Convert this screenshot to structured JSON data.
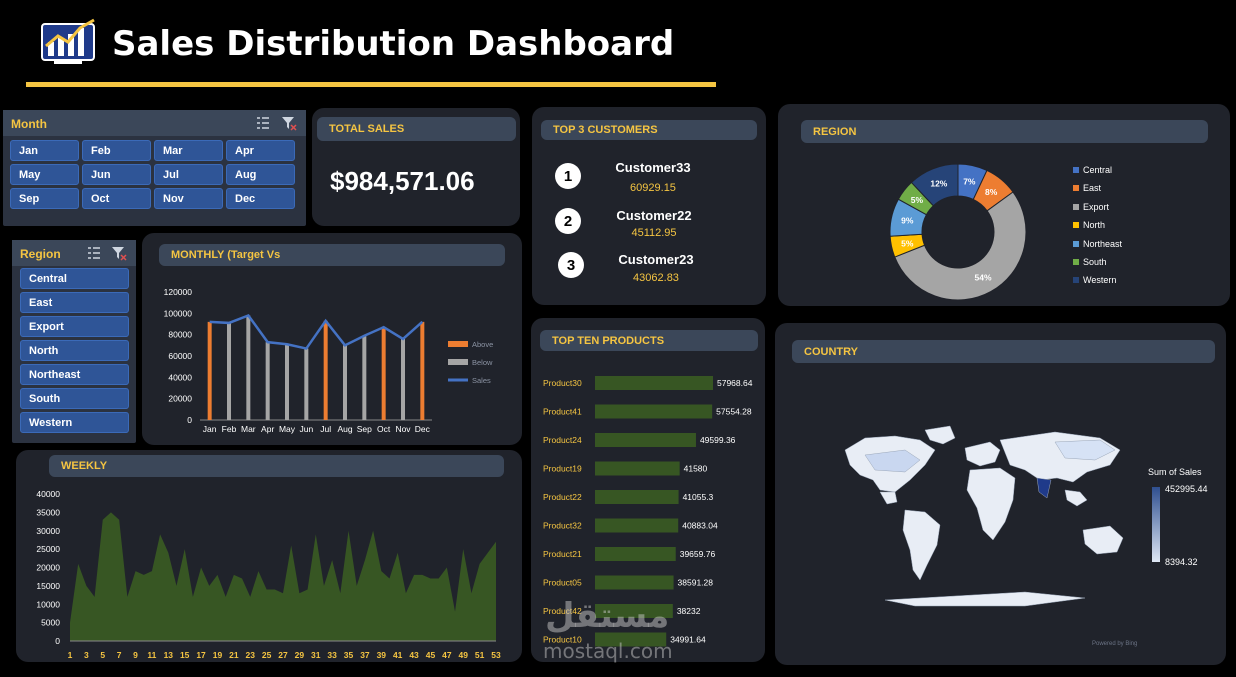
{
  "header": {
    "title": "Sales Distribution Dashboard"
  },
  "month_slicer": {
    "label": "Month",
    "items": [
      "Jan",
      "Feb",
      "Mar",
      "Apr",
      "May",
      "Jun",
      "Jul",
      "Aug",
      "Sep",
      "Oct",
      "Nov",
      "Dec"
    ]
  },
  "total_sales": {
    "label": "TOTAL SALES",
    "value": "$984,571.06"
  },
  "top_customers": {
    "label": "TOP 3 CUSTOMERS",
    "items": [
      {
        "rank": "1",
        "name": "Customer33",
        "value": "60929.15"
      },
      {
        "rank": "2",
        "name": "Customer22",
        "value": "45112.95"
      },
      {
        "rank": "3",
        "name": "Customer23",
        "value": "43062.83"
      }
    ]
  },
  "region_chart": {
    "label": "REGION",
    "chart_data": {
      "type": "pie",
      "categories": [
        "Central",
        "East",
        "Export",
        "North",
        "Northeast",
        "South",
        "Western"
      ],
      "values": [
        7,
        8,
        54,
        5,
        9,
        5,
        12
      ],
      "labels": [
        "7%",
        "8%",
        "54%",
        "5%",
        "9%",
        "5%",
        "12%"
      ],
      "colors": [
        "#4472c4",
        "#ed7d31",
        "#a5a5a5",
        "#ffc000",
        "#5b9bd5",
        "#70ad47",
        "#264478"
      ]
    }
  },
  "region_slicer": {
    "label": "Region",
    "items": [
      "Central",
      "East",
      "Export",
      "North",
      "Northeast",
      "South",
      "Western"
    ]
  },
  "monthly_chart": {
    "label": "MONTHLY (Target Vs",
    "chart_data": {
      "type": "bar",
      "categories": [
        "Jan",
        "Feb",
        "Mar",
        "Apr",
        "May",
        "Jun",
        "Jul",
        "Aug",
        "Sep",
        "Oct",
        "Nov",
        "Dec"
      ],
      "series": [
        {
          "name": "Above",
          "color": "#ed7d31"
        },
        {
          "name": "Below",
          "color": "#a5a5a5"
        },
        {
          "name": "Sales",
          "color": "#4472c4"
        }
      ],
      "values": [
        92000,
        91000,
        98000,
        73000,
        71000,
        67000,
        93000,
        70000,
        79000,
        87000,
        76000,
        92000
      ],
      "above": [
        true,
        false,
        false,
        false,
        false,
        false,
        true,
        false,
        false,
        true,
        false,
        true
      ],
      "y_ticks": [
        "120000",
        "100000",
        "80000",
        "60000",
        "40000",
        "20000",
        "0"
      ],
      "ylim": [
        0,
        120000
      ]
    }
  },
  "top_products": {
    "label": "TOP TEN PRODUCTS",
    "chart_data": {
      "type": "bar",
      "categories": [
        "Product30",
        "Product41",
        "Product24",
        "Product19",
        "Product22",
        "Product32",
        "Product21",
        "Product05",
        "Product42",
        "Product10"
      ],
      "values": [
        57968.64,
        57554.28,
        49599.36,
        41580,
        41055.3,
        40883.04,
        39659.76,
        38591.28,
        38232,
        34991.64
      ],
      "value_labels": [
        "57968.64",
        "57554.28",
        "49599.36",
        "41580",
        "41055.3",
        "40883.04",
        "39659.76",
        "38591.28",
        "38232",
        "34991.64"
      ],
      "color": "#375623"
    }
  },
  "weekly_chart": {
    "label": "WEEKLY",
    "chart_data": {
      "type": "area",
      "x": [
        1,
        2,
        3,
        4,
        5,
        6,
        7,
        8,
        9,
        10,
        11,
        12,
        13,
        14,
        15,
        16,
        17,
        18,
        19,
        20,
        21,
        22,
        23,
        24,
        25,
        26,
        27,
        28,
        29,
        30,
        31,
        32,
        33,
        34,
        35,
        36,
        37,
        38,
        39,
        40,
        41,
        42,
        43,
        44,
        45,
        46,
        47,
        48,
        49,
        50,
        51,
        52,
        53
      ],
      "values": [
        5000,
        21000,
        15000,
        12000,
        33000,
        35000,
        33000,
        12000,
        19000,
        18000,
        19000,
        29000,
        24000,
        15000,
        25000,
        12000,
        20000,
        15000,
        18000,
        12000,
        18000,
        17000,
        12000,
        19000,
        14000,
        14000,
        13000,
        26000,
        13000,
        14000,
        29000,
        15000,
        22000,
        13000,
        30000,
        15000,
        22000,
        30000,
        19000,
        17000,
        24000,
        13000,
        18000,
        18000,
        17000,
        17000,
        20000,
        8000,
        25000,
        13000,
        21000,
        24000,
        27000
      ],
      "x_ticks": [
        "1",
        "3",
        "5",
        "7",
        "9",
        "11",
        "13",
        "15",
        "17",
        "19",
        "21",
        "23",
        "25",
        "27",
        "29",
        "31",
        "33",
        "35",
        "37",
        "39",
        "41",
        "43",
        "45",
        "47",
        "49",
        "51",
        "53"
      ],
      "y_ticks": [
        "40000",
        "35000",
        "30000",
        "25000",
        "20000",
        "15000",
        "10000",
        "5000",
        "0"
      ],
      "ylim": [
        0,
        40000
      ],
      "color": "#375623"
    }
  },
  "country_map": {
    "label": "COUNTRY",
    "legend_title": "Sum of Sales",
    "legend_max": "452995.44",
    "legend_min": "8394.32",
    "attribution": "Powered by Bing"
  },
  "watermark": {
    "arabic": "مستقل",
    "latin": "mostaql.com"
  }
}
